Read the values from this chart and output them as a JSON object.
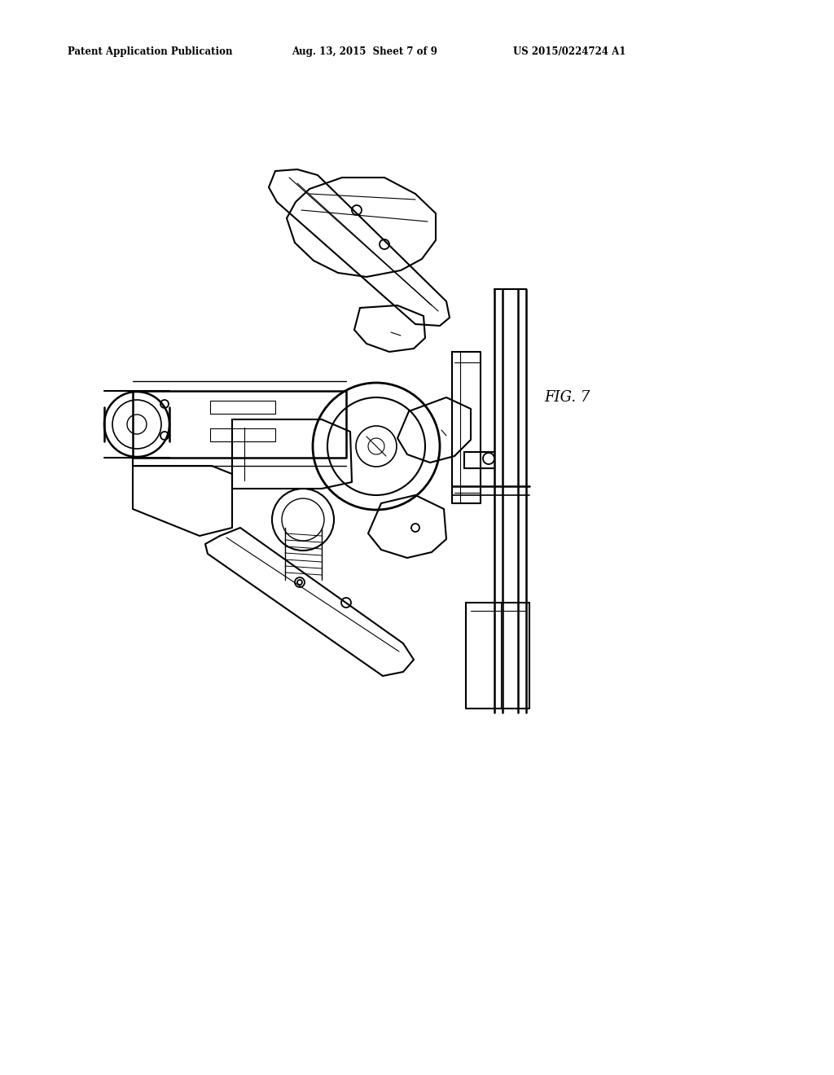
{
  "background_color": "#ffffff",
  "line_color": "#000000",
  "header_left": "Patent Application Publication",
  "header_center": "Aug. 13, 2015  Sheet 7 of 9",
  "header_right": "US 2015/0224724 A1",
  "fig_label": "FIG. 7",
  "figure_width": 10.24,
  "figure_height": 13.2,
  "dpi": 100
}
